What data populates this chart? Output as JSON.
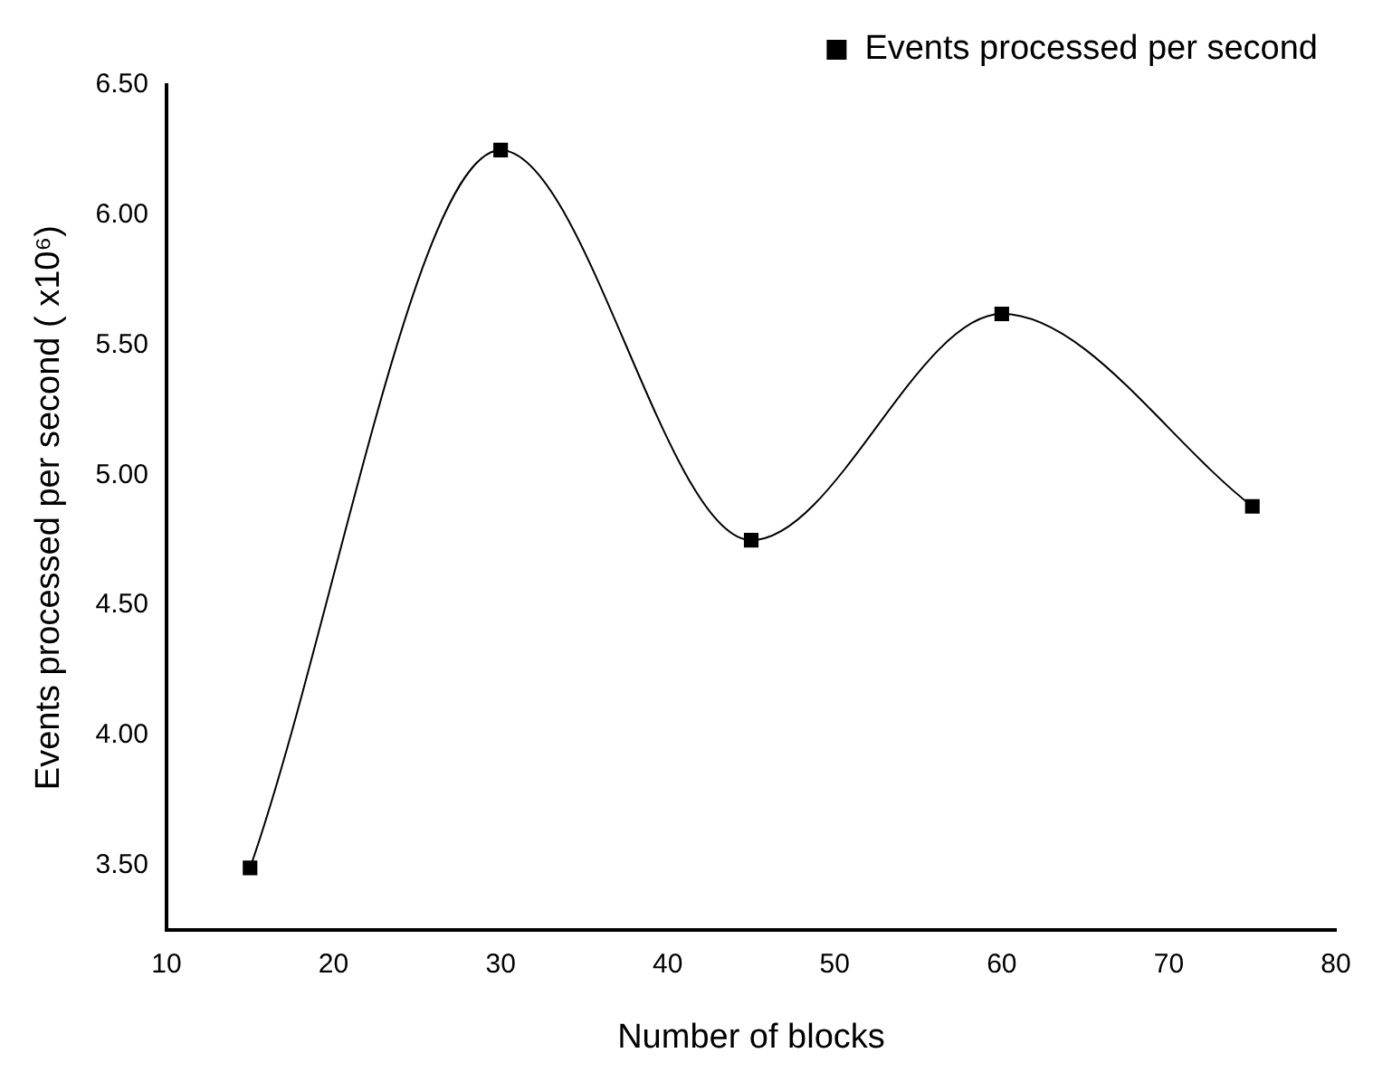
{
  "chart_data": {
    "type": "line",
    "xlabel": "Number of blocks",
    "ylabel": "Events processed per second ( x10⁶)",
    "x": [
      15,
      30,
      45,
      60,
      75
    ],
    "series": [
      {
        "name": "Events processed per second",
        "color": "#000000",
        "values": [
          3.49,
          6.25,
          4.75,
          5.62,
          4.88
        ]
      }
    ],
    "xlim": [
      10,
      80
    ],
    "xticks": [
      10,
      20,
      30,
      40,
      50,
      60,
      70,
      80
    ],
    "ylim": [
      3.25,
      6.5
    ],
    "yticks": [
      {
        "value": 3.5,
        "label": "3.50"
      },
      {
        "value": 4,
        "label": "4.00"
      },
      {
        "value": 4.5,
        "label": "4.50"
      },
      {
        "value": 5,
        "label": "5.00"
      },
      {
        "value": 5.5,
        "label": "5.50"
      },
      {
        "value": 6,
        "label": "6.00"
      },
      {
        "value": 6.5,
        "label": "6.50"
      }
    ],
    "grid": false,
    "legend": "top right",
    "marker": "square",
    "line_style": "solid"
  }
}
